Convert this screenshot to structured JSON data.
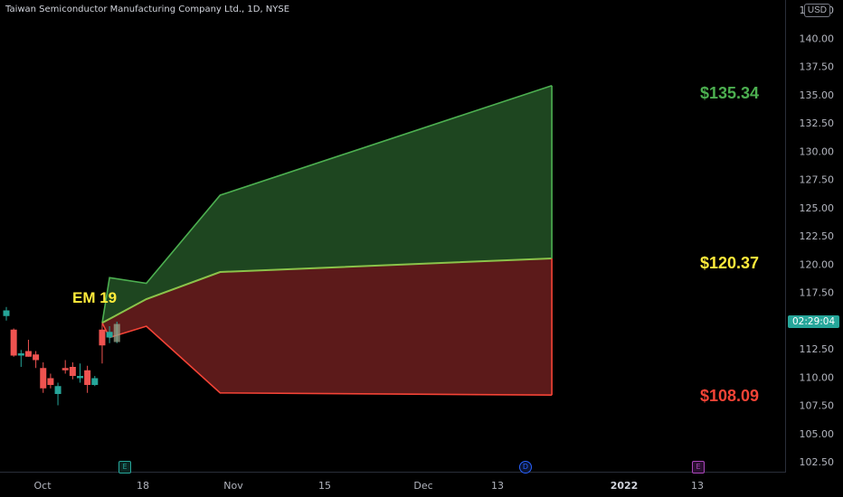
{
  "header": {
    "title": "Taiwan Semiconductor Manufacturing Company Ltd., 1D, NYSE",
    "currency": "USD"
  },
  "countdown": "02:29:04",
  "annotations": {
    "em_label": "EM 19",
    "upper_label": "$135.34",
    "middle_label": "$120.37",
    "lower_label": "$108.09"
  },
  "events": {
    "earnings_1": "E",
    "dividend": "D",
    "earnings_2": "E"
  },
  "colors": {
    "up_candle": "#26a69a",
    "down_candle": "#ef5350",
    "upper_fill": "#1e4620",
    "lower_fill": "#5c1a1a",
    "upper_line": "#4caf50",
    "lower_line": "#f44336",
    "mid_line": "#8bc34a",
    "em_color": "#ffeb3b"
  },
  "chart_data": {
    "type": "candlestick",
    "title": "Taiwan Semiconductor Manufacturing Company Ltd., 1D, NYSE",
    "y_axis": {
      "ticks": [
        "102.50",
        "105.00",
        "107.50",
        "110.00",
        "112.50",
        "115.00",
        "117.50",
        "120.00",
        "122.50",
        "125.00",
        "127.50",
        "130.00",
        "132.50",
        "135.00",
        "137.50",
        "140.00",
        "142.50"
      ],
      "range": [
        101.8,
        143.0
      ]
    },
    "x_axis": {
      "ticks": [
        "Oct",
        "18",
        "Nov",
        "15",
        "Dec",
        "13",
        "2022",
        "13"
      ]
    },
    "candles": [
      {
        "date": "2021-10-04",
        "open": 115.4,
        "high": 116.2,
        "low": 115.0,
        "close": 115.9
      },
      {
        "date": "2021-10-05",
        "open": 114.2,
        "high": 114.3,
        "low": 111.8,
        "close": 111.9
      },
      {
        "date": "2021-10-06",
        "open": 111.9,
        "high": 112.4,
        "low": 110.9,
        "close": 112.1
      },
      {
        "date": "2021-10-07",
        "open": 112.3,
        "high": 113.3,
        "low": 111.8,
        "close": 111.8
      },
      {
        "date": "2021-10-08",
        "open": 112.0,
        "high": 112.3,
        "low": 110.8,
        "close": 111.5
      },
      {
        "date": "2021-10-11",
        "open": 110.8,
        "high": 111.3,
        "low": 108.6,
        "close": 109.0
      },
      {
        "date": "2021-10-12",
        "open": 109.9,
        "high": 110.3,
        "low": 109.0,
        "close": 109.3
      },
      {
        "date": "2021-10-13",
        "open": 108.5,
        "high": 109.5,
        "low": 107.5,
        "close": 109.2
      },
      {
        "date": "2021-10-14",
        "open": 110.8,
        "high": 111.5,
        "low": 110.3,
        "close": 110.6
      },
      {
        "date": "2021-10-15",
        "open": 110.9,
        "high": 111.3,
        "low": 109.8,
        "close": 110.1
      },
      {
        "date": "2021-10-18",
        "open": 109.9,
        "high": 111.2,
        "low": 109.5,
        "close": 110.1
      },
      {
        "date": "2021-10-19",
        "open": 110.6,
        "high": 111.0,
        "low": 108.6,
        "close": 109.3
      },
      {
        "date": "2021-10-20",
        "open": 109.3,
        "high": 110.1,
        "low": 109.2,
        "close": 109.9
      },
      {
        "date": "2021-10-21",
        "open": 114.2,
        "high": 114.8,
        "low": 111.2,
        "close": 112.8
      },
      {
        "date": "2021-10-22",
        "open": 113.5,
        "high": 114.5,
        "low": 113.0,
        "close": 114.0
      },
      {
        "date": "2021-10-25",
        "open": 113.1,
        "high": 114.9,
        "low": 113.0,
        "close": 114.7
      }
    ],
    "expected_move": {
      "label": "EM 19",
      "upper": [
        {
          "x": "2021-10-21",
          "y": 114.8
        },
        {
          "x": "2021-10-22",
          "y": 118.8
        },
        {
          "x": "2021-10-29",
          "y": 118.3
        },
        {
          "x": "2021-11-12",
          "y": 126.1
        },
        {
          "x": "2022-01-14",
          "y": 135.8
        }
      ],
      "middle": [
        {
          "x": "2021-10-21",
          "y": 114.8
        },
        {
          "x": "2021-10-29",
          "y": 116.9
        },
        {
          "x": "2021-11-12",
          "y": 119.3
        },
        {
          "x": "2022-01-14",
          "y": 120.5
        }
      ],
      "lower": [
        {
          "x": "2021-10-21",
          "y": 114.8
        },
        {
          "x": "2021-10-22",
          "y": 113.5
        },
        {
          "x": "2021-10-29",
          "y": 114.5
        },
        {
          "x": "2021-11-12",
          "y": 108.6
        },
        {
          "x": "2022-01-14",
          "y": 108.4
        }
      ],
      "targets": {
        "high": "135.34",
        "mid": "120.37",
        "low": "108.09"
      }
    },
    "grid": false
  }
}
